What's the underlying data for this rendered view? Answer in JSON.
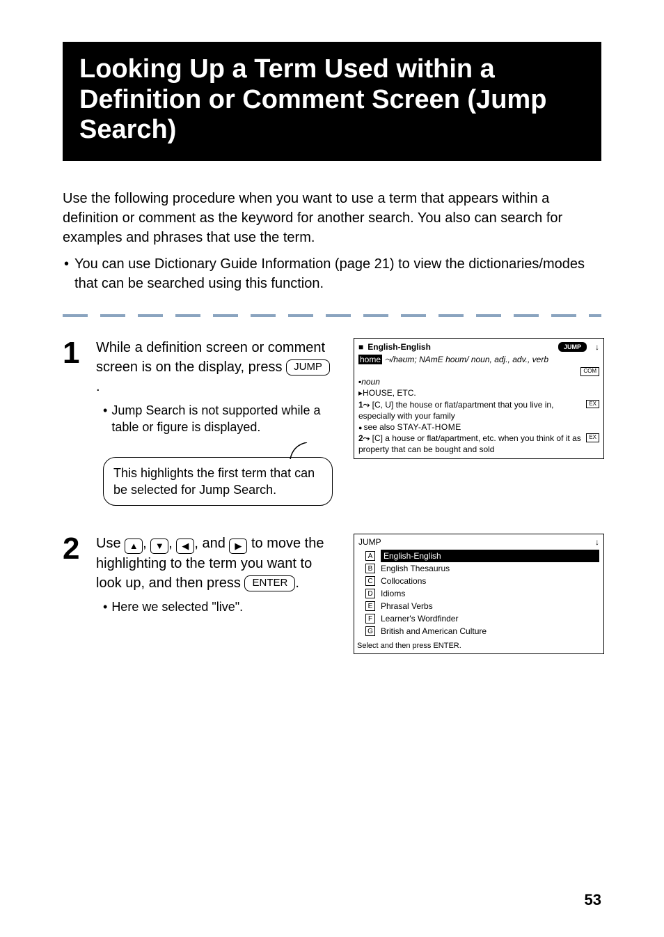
{
  "title": "Looking Up a Term Used within a Definition or Comment Screen (Jump Search)",
  "intro": "Use the following procedure when you want to use a term that appears within a definition or comment as the keyword for another search. You also can search for examples and phrases that use the term.",
  "intro_bullet": "You can use Dictionary Guide Information (page 21) to view the dictionaries/modes that can be searched using this function.",
  "step1": {
    "num": "1",
    "text_a": "While a definition screen or comment screen is on the display, press ",
    "key": "JUMP",
    "text_b": ".",
    "sub": "Jump Search is not supported while a table or figure is displayed.",
    "callout": "This highlights the first term that can be selected for Jump Search."
  },
  "step2": {
    "num": "2",
    "text_a": "Use ",
    "text_mid": " to move the highlighting to the term you want to look up, and then press ",
    "key": "ENTER",
    "text_b": ".",
    "sub": "Here we selected \"live\"."
  },
  "screen1": {
    "dict": "English-English",
    "jump": "JUMP",
    "hw": "home",
    "pron": " ⤳/həʊm; NAmE hoʊm/ noun, adj., adv., verb",
    "com": "COM",
    "pos": "▪noun",
    "sense": "▸HOUSE, ETC.",
    "d1n": "1⤳",
    "d1": " [C, U] the house or flat/apartment that you live in, especially with your family",
    "ex": "EX",
    "xref": "see also ",
    "xref_sc": "STAY-AT-HOME",
    "d2n": "2⤳",
    "d2": " [C] a house or flat/apartment, etc. when you think of it as property that can be bought and sold"
  },
  "screen2": {
    "title": "JUMP",
    "items": [
      {
        "k": "A",
        "label": "English-English",
        "sel": true
      },
      {
        "k": "B",
        "label": "English Thesaurus",
        "sel": false
      },
      {
        "k": "C",
        "label": "Collocations",
        "sel": false
      },
      {
        "k": "D",
        "label": "Idioms",
        "sel": false
      },
      {
        "k": "E",
        "label": "Phrasal Verbs",
        "sel": false
      },
      {
        "k": "F",
        "label": "Learner's Wordfinder",
        "sel": false
      },
      {
        "k": "G",
        "label": "British and American Culture",
        "sel": false
      }
    ],
    "prompt": "Select and then press ENTER."
  },
  "page_num": "53"
}
